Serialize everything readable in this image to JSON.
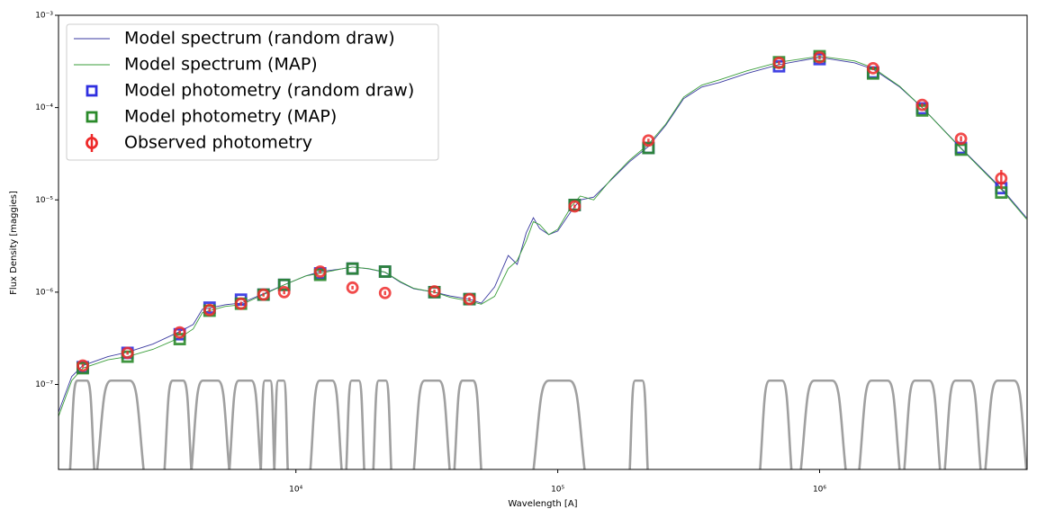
{
  "chart_data": {
    "type": "line",
    "xlabel": "Wavelength [A]",
    "ylabel": "Flux Density [maggies]",
    "xscale": "log",
    "yscale": "log",
    "xlim": [
      1240,
      6200000
    ],
    "ylim": [
      1.2e-08,
      0.001
    ],
    "xticks": [
      {
        "value": 10000,
        "label": "10⁴"
      },
      {
        "value": 100000,
        "label": "10⁵"
      },
      {
        "value": 1000000,
        "label": "10⁶"
      }
    ],
    "yticks": [
      {
        "value": 1e-07,
        "label": "10⁻⁷"
      },
      {
        "value": 1e-06,
        "label": "10⁻⁶"
      },
      {
        "value": 1e-05,
        "label": "10⁻⁵"
      },
      {
        "value": 0.0001,
        "label": "10⁻⁴"
      },
      {
        "value": 0.001,
        "label": "10⁻³"
      }
    ],
    "legend": "upper left",
    "x": [
      1240,
      1393,
      1535,
      1914,
      2275,
      2844,
      3600,
      4055,
      4394,
      4680,
      5355,
      6170,
      7520,
      9020,
      10910,
      12380,
      14970,
      16450,
      18960,
      21900,
      25060,
      28180,
      33800,
      38730,
      46000,
      51050,
      57410,
      64700,
      70000,
      75800,
      80700,
      85300,
      92400,
      100000,
      112700,
      121900,
      137200,
      160700,
      188300,
      222000,
      258200,
      302600,
      354700,
      415600,
      527000,
      700000,
      1000000,
      1362000,
      1600000,
      2023000,
      2465000,
      3467000,
      4940000,
      6166000
    ],
    "series": [
      {
        "name": "Model spectrum (random draw)",
        "color": "#3a3aa0",
        "values": [
          5e-08,
          1.22e-07,
          1.6e-07,
          2e-07,
          2.24e-07,
          2.74e-07,
          3.74e-07,
          4.47e-07,
          6.54e-07,
          6.7e-07,
          7.3e-07,
          7.6e-07,
          9.6e-07,
          1.2e-06,
          1.5e-06,
          1.67e-06,
          1.79e-06,
          1.87e-06,
          1.79e-06,
          1.64e-06,
          1.28e-06,
          1.09e-06,
          1e-06,
          9.1e-07,
          8.4e-07,
          7.6e-07,
          1.14e-06,
          2.5e-06,
          2e-06,
          4.4e-06,
          6.4e-06,
          4.9e-06,
          4.2e-06,
          4.6e-06,
          7.6e-06,
          1e-05,
          1.07e-05,
          1.67e-05,
          2.6e-05,
          3.8e-05,
          6.4e-05,
          0.000125,
          0.000167,
          0.000187,
          0.000234,
          0.000292,
          0.00035,
          0.000305,
          0.000261,
          0.000167,
          0.0001,
          3.65e-05,
          1.34e-05,
          6.4e-06
        ]
      },
      {
        "name": "Model spectrum (MAP)",
        "color": "#3a9e3a",
        "values": [
          4.5e-08,
          1.1e-07,
          1.5e-07,
          1.85e-07,
          2e-07,
          2.4e-07,
          3.2e-07,
          4e-07,
          6e-07,
          6.3e-07,
          7e-07,
          7.3e-07,
          9.4e-07,
          1.2e-06,
          1.5e-06,
          1.6e-06,
          1.79e-06,
          1.87e-06,
          1.8e-06,
          1.65e-06,
          1.3e-06,
          1.1e-06,
          1e-06,
          8.8e-07,
          8e-07,
          7.4e-07,
          9e-07,
          1.8e-06,
          2.2e-06,
          3.6e-06,
          5.8e-06,
          5.4e-06,
          4.2e-06,
          4.8e-06,
          8.5e-06,
          1.1e-05,
          1e-05,
          1.7e-05,
          2.7e-05,
          4e-05,
          6.6e-05,
          0.00013,
          0.000175,
          0.0002,
          0.00025,
          0.00031,
          0.00036,
          0.00032,
          0.00027,
          0.00017,
          0.0001,
          3.6e-05,
          1.3e-05,
          6.2e-06
        ]
      }
    ],
    "photometry": {
      "x": [
        1535,
        2275,
        3600,
        4680,
        6170,
        7520,
        9020,
        12380,
        16450,
        21900,
        33800,
        46000,
        116000,
        222000,
        700000,
        1000000,
        1600000,
        2465000,
        3467000,
        4940000
      ],
      "series": [
        {
          "name": "Model photometry (random draw)",
          "color": "#2f2fe0",
          "marker": "square",
          "values": [
            1.54e-07,
            2.2e-07,
            3.5e-07,
            6.8e-07,
            8.3e-07,
            9.4e-07,
            1.2e-06,
            1.6e-06,
            1.8e-06,
            1.67e-06,
            1e-06,
            8.4e-07,
            8.8e-06,
            3.65e-05,
            0.00028,
            0.000335,
            0.00024,
            9.8e-05,
            3.65e-05,
            1.34e-05
          ]
        },
        {
          "name": "Model photometry (MAP)",
          "color": "#2a8a2a",
          "marker": "square",
          "values": [
            1.5e-07,
            2e-07,
            3.1e-07,
            6.3e-07,
            7.5e-07,
            9.4e-07,
            1.2e-06,
            1.54e-06,
            1.8e-06,
            1.67e-06,
            1e-06,
            8.4e-07,
            8.8e-06,
            3.65e-05,
            0.00031,
            0.00036,
            0.000234,
            9.3e-05,
            3.5e-05,
            1.2e-05
          ]
        },
        {
          "name": "Observed photometry",
          "color": "#ee2a2a",
          "marker": "circle",
          "values": [
            1.6e-07,
            2.2e-07,
            3.66e-07,
            6.4e-07,
            7.5e-07,
            9.4e-07,
            1e-06,
            1.67e-06,
            1.12e-06,
            9.8e-07,
            1.02e-06,
            8.4e-07,
            8.5e-06,
            4.4e-05,
            0.000305,
            0.00035,
            0.000267,
            0.000107,
            4.6e-05,
            1.71e-05
          ],
          "errors": [
            8e-09,
            1e-08,
            1.8e-08,
            3e-08,
            4e-08,
            4.5e-08,
            5e-08,
            8e-08,
            5e-08,
            5e-08,
            5e-08,
            4e-08,
            4e-07,
            2e-06,
            1.5e-05,
            1.7e-05,
            1.3e-05,
            5e-06,
            3e-06,
            4e-06
          ]
        }
      ]
    },
    "filter_color": "#a0a0a0",
    "filter_peak": 1.1e-07,
    "filters": [
      [
        1372,
        1699
      ],
      [
        1740,
        2624
      ],
      [
        3148,
        3990
      ],
      [
        3990,
        5570
      ],
      [
        5570,
        7345
      ],
      [
        7345,
        8270
      ],
      [
        8270,
        9310
      ],
      [
        11350,
        14960
      ],
      [
        15570,
        18240
      ],
      [
        19750,
        23130
      ],
      [
        28200,
        38700
      ],
      [
        40270,
        51050
      ],
      [
        80700,
        126800
      ],
      [
        188300,
        220600
      ],
      [
        592000,
        781000
      ],
      [
        847000,
        1259000
      ],
      [
        1416000,
        2023000
      ],
      [
        2104000,
        2886000
      ],
      [
        3004000,
        4123000
      ],
      [
        4290000,
        6166000
      ]
    ]
  }
}
